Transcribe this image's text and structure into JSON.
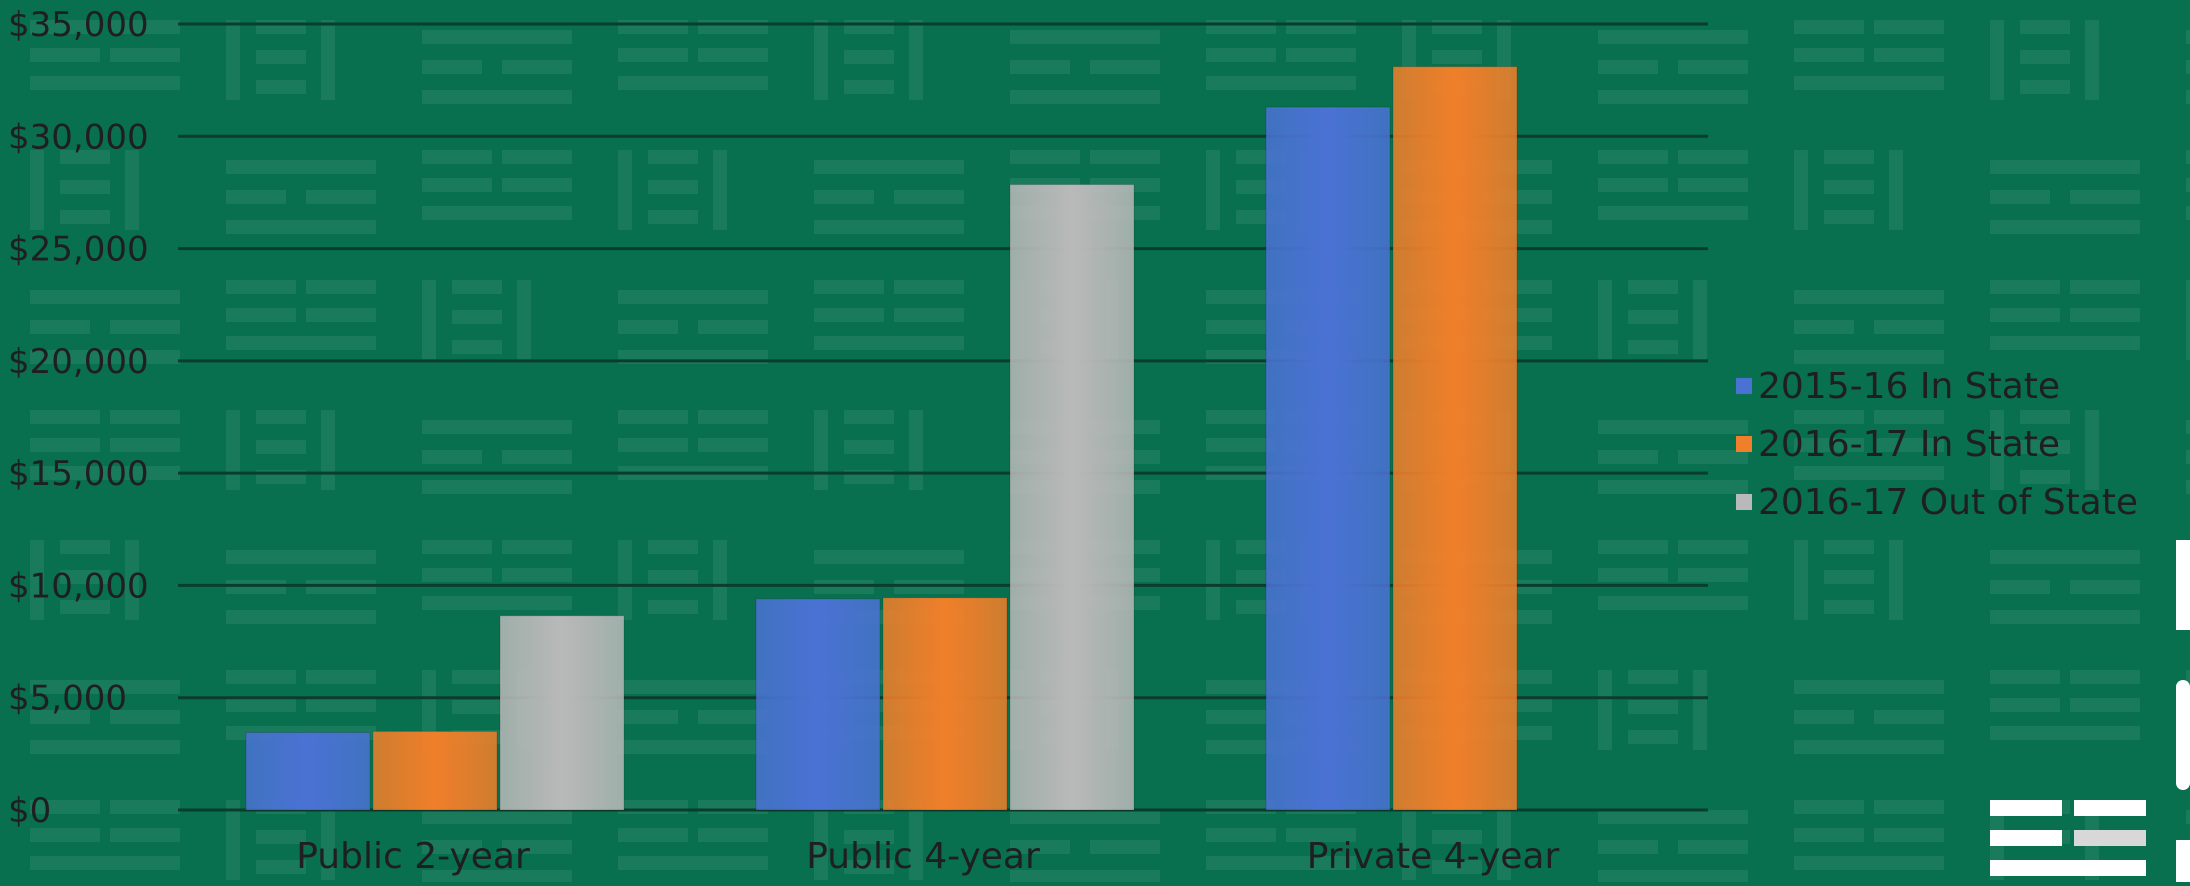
{
  "colors": {
    "background": "#08704f",
    "gridline": "#0a3d2c",
    "text": "#1f1f1f",
    "series": [
      "#4a72d4",
      "#f07f2a",
      "#b9b9b9"
    ]
  },
  "chart_data": {
    "type": "bar",
    "categories": [
      "Public 2-year",
      "Public 4-year",
      "Private 4-year"
    ],
    "series": [
      {
        "name": "2015-16 In State",
        "values": [
          3450,
          9400,
          31300
        ]
      },
      {
        "name": "2016-17 In State",
        "values": [
          3500,
          9450,
          33100
        ]
      },
      {
        "name": "2016-17 Out of State",
        "values": [
          8650,
          27850,
          null
        ]
      }
    ],
    "yticks": [
      "$0",
      "$5,000",
      "$10,000",
      "$15,000",
      "$20,000",
      "$25,000",
      "$30,000",
      "$35,000"
    ],
    "ylim": [
      0,
      35000
    ],
    "grid": true,
    "legend_position": "right",
    "title": "",
    "xlabel": "",
    "ylabel": ""
  },
  "logo_icon": "grid-logo-icon"
}
